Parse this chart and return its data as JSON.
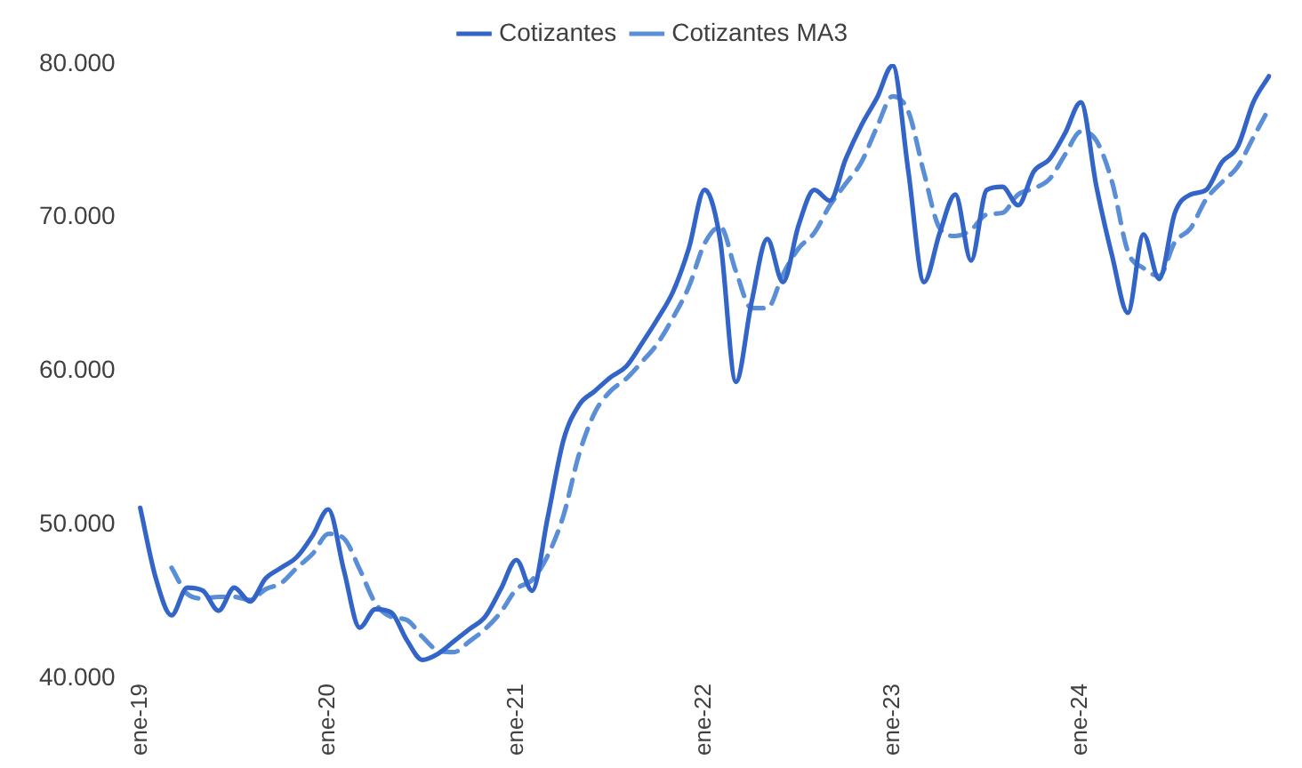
{
  "chart_data": {
    "type": "line",
    "categories": [
      "ene-19",
      null,
      null,
      null,
      null,
      null,
      null,
      null,
      null,
      null,
      null,
      null,
      "ene-20",
      null,
      null,
      null,
      null,
      null,
      null,
      null,
      null,
      null,
      null,
      null,
      "ene-21",
      null,
      null,
      null,
      null,
      null,
      null,
      null,
      null,
      null,
      null,
      null,
      "ene-22",
      null,
      null,
      null,
      null,
      null,
      null,
      null,
      null,
      null,
      null,
      null,
      "ene-23",
      null,
      null,
      null,
      null,
      null,
      null,
      null,
      null,
      null,
      null,
      null,
      "ene-24",
      null,
      null,
      null,
      null,
      null,
      null,
      null,
      null,
      null,
      null,
      null,
      null
    ],
    "series": [
      {
        "name": "Cotizantes",
        "color": "#3364c8",
        "line_style": "solid",
        "values": [
          51100,
          46500,
          44100,
          45900,
          45700,
          44400,
          45900,
          45000,
          46500,
          47200,
          47900,
          49300,
          51000,
          47000,
          43300,
          44500,
          44300,
          42500,
          41200,
          41600,
          42400,
          43200,
          44000,
          45800,
          47700,
          45700,
          50500,
          55500,
          57800,
          58700,
          59600,
          60300,
          61800,
          63400,
          65200,
          68000,
          71800,
          68500,
          59300,
          64500,
          68600,
          65800,
          69500,
          71800,
          71100,
          73800,
          76000,
          77800,
          79900,
          73000,
          65800,
          69000,
          71500,
          67200,
          71800,
          72000,
          70800,
          73000,
          73800,
          75500,
          77500,
          72000,
          67500,
          63800,
          68900,
          66000,
          70300,
          71500,
          71800,
          73600,
          74600,
          77500,
          79200
        ]
      },
      {
        "name": "Cotizantes MA3",
        "color": "#5a8fd8",
        "line_style": "dashed",
        "values": [
          null,
          null,
          47200,
          45500,
          45200,
          45300,
          45300,
          45100,
          45800,
          46200,
          47200,
          48100,
          49400,
          49100,
          47100,
          44900,
          44000,
          43800,
          42700,
          41800,
          41700,
          42400,
          43200,
          44300,
          45800,
          46400,
          48000,
          50600,
          54600,
          57300,
          58700,
          59500,
          60600,
          61800,
          63500,
          65500,
          68300,
          69400,
          66500,
          64100,
          64100,
          66300,
          68000,
          69000,
          70800,
          72200,
          73600,
          75900,
          77900,
          76900,
          72900,
          69300,
          68800,
          69200,
          70200,
          70300,
          71500,
          71900,
          72500,
          74100,
          75600,
          75000,
          72300,
          67800,
          66700,
          66200,
          68400,
          69300,
          71200,
          72300,
          73300,
          75200,
          77100
        ]
      }
    ],
    "ylim": [
      40000,
      80000
    ],
    "yticks": [
      {
        "value": 40000,
        "label": "40.000"
      },
      {
        "value": 50000,
        "label": "50.000"
      },
      {
        "value": 60000,
        "label": "60.000"
      },
      {
        "value": 70000,
        "label": "70.000"
      },
      {
        "value": 80000,
        "label": "80.000"
      }
    ],
    "grid": false,
    "legend": "top"
  }
}
